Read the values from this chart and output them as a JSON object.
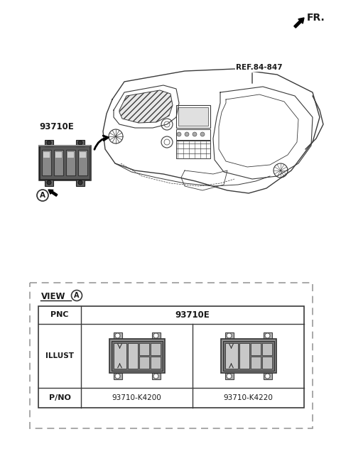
{
  "bg_color": "#ffffff",
  "fr_label": "FR.",
  "ref_label": "REF.84-847",
  "part_label": "93710E",
  "part_a_label": "93710E",
  "circle_a_label": "A",
  "pnc_label": "PNC",
  "illust_label": "ILLUST",
  "pno_label": "P/NO",
  "pno_left": "93710-K4200",
  "pno_right": "93710-K4220",
  "view_label": "VIEW",
  "text_color": "#1a1a1a",
  "line_color": "#3a3a3a",
  "table_line_color": "#3a3a3a",
  "dashed_border_color": "#888888",
  "part_dark": "#5a5a5a",
  "part_mid": "#7a7a7a",
  "part_light": "#aaaaaa"
}
